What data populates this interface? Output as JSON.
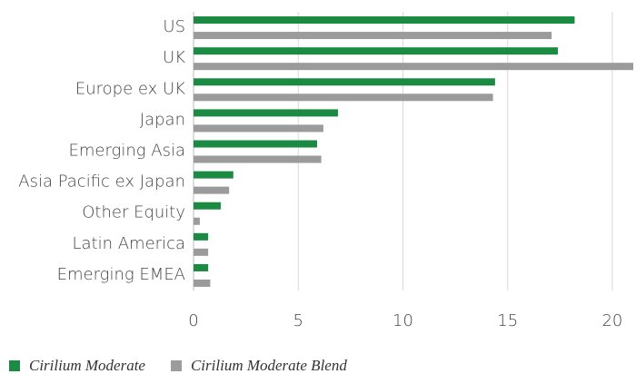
{
  "chart_data": {
    "type": "barh",
    "categories": [
      "US",
      "UK",
      "Europe ex UK",
      "Japan",
      "Emerging Asia",
      "Asia Pacific ex Japan",
      "Other Equity",
      "Latin America",
      "Emerging EMEA"
    ],
    "series": [
      {
        "name": "Cirilium Moderate",
        "color": "#1b8a42",
        "values": [
          18.2,
          17.4,
          14.4,
          6.9,
          5.9,
          1.9,
          1.3,
          0.7,
          0.7
        ]
      },
      {
        "name": "Cirilium Moderate Blend",
        "color": "#9b9b9b",
        "values": [
          17.1,
          21,
          14.3,
          6.2,
          6.1,
          1.7,
          0.3,
          0.7,
          0.8
        ]
      }
    ],
    "xlim": [
      0,
      21
    ],
    "xticks": [
      0,
      5,
      10,
      15,
      20
    ],
    "grid": true,
    "legend": "bottom-left"
  }
}
